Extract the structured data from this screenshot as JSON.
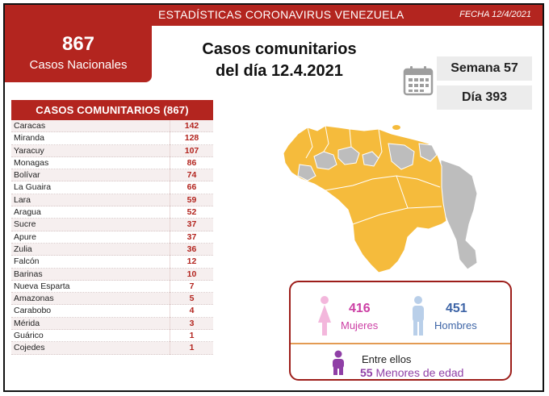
{
  "header": {
    "title": "ESTADÍSTICAS CORONAVIRUS VENEZUELA",
    "date": "FECHA 12/4/2021"
  },
  "national": {
    "count": "867",
    "label": "Casos Nacionales"
  },
  "headline": {
    "line1": "Casos comunitarios",
    "line2": "del día 12.4.2021"
  },
  "calendar_icon": "calendar-icon",
  "week": "Semana 57",
  "day": "Día 393",
  "table": {
    "title": "CASOS COMUNITARIOS (867)",
    "rows": [
      {
        "name": "Caracas",
        "value": "142"
      },
      {
        "name": "Miranda",
        "value": "128"
      },
      {
        "name": "Yaracuy",
        "value": "107"
      },
      {
        "name": "Monagas",
        "value": "86"
      },
      {
        "name": "Bolívar",
        "value": "74"
      },
      {
        "name": "La Guaira",
        "value": "66"
      },
      {
        "name": "Lara",
        "value": "59"
      },
      {
        "name": "Aragua",
        "value": "52"
      },
      {
        "name": "Sucre",
        "value": "37"
      },
      {
        "name": "Apure",
        "value": "37"
      },
      {
        "name": "Zulia",
        "value": "36"
      },
      {
        "name": "Falcón",
        "value": "12"
      },
      {
        "name": "Barinas",
        "value": "10"
      },
      {
        "name": "Nueva Esparta",
        "value": "7"
      },
      {
        "name": "Amazonas",
        "value": "5"
      },
      {
        "name": "Carabobo",
        "value": "4"
      },
      {
        "name": "Mérida",
        "value": "3"
      },
      {
        "name": "Guárico",
        "value": "1"
      },
      {
        "name": "Cojedes",
        "value": "1"
      }
    ]
  },
  "map_colors": {
    "affected": "#f5bb3c",
    "unaffected": "#bdbdbd"
  },
  "gender": {
    "women_count": "416",
    "women_label": "Mujeres",
    "men_count": "451",
    "men_label": "Hombres",
    "children_line1": "Entre ellos",
    "children_count": "55",
    "children_label": "Menores de edad"
  },
  "colors": {
    "brand_red": "#b3251f",
    "women": "#cc3fa4",
    "men": "#3d64a6",
    "children": "#8f3fa6"
  }
}
